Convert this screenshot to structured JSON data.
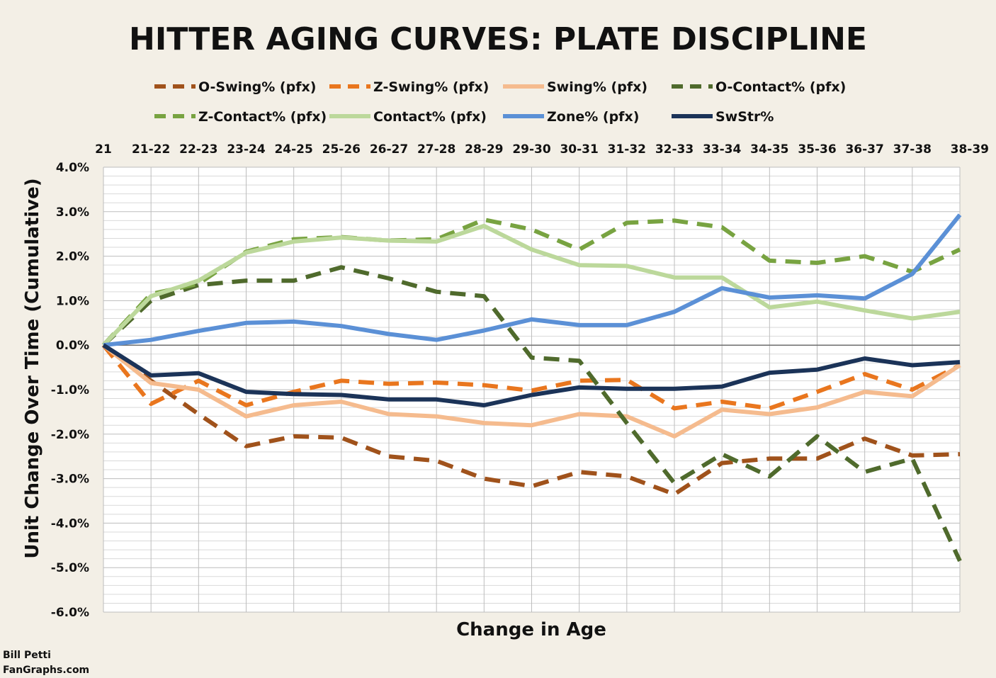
{
  "chart_data": {
    "type": "line",
    "title": "HITTER AGING CURVES: PLATE DISCIPLINE",
    "xlabel": "Change in Age",
    "ylabel": "Unit Change Over Time (Cumulative)",
    "categories": [
      "21",
      "21-22",
      "22-23",
      "23-24",
      "24-25",
      "25-26",
      "26-27",
      "27-28",
      "28-29",
      "29-30",
      "30-31",
      "31-32",
      "32-33",
      "33-34",
      "34-35",
      "35-36",
      "36-37",
      "37-38",
      "38-39"
    ],
    "ylim": [
      -6.0,
      4.0
    ],
    "yticks": [
      4.0,
      3.0,
      2.0,
      1.0,
      0.0,
      -1.0,
      -2.0,
      -3.0,
      -4.0,
      -5.0,
      -6.0
    ],
    "ytick_labels": [
      "4.0%",
      "3.0%",
      "2.0%",
      "1.0%",
      "0.0%",
      "-1.0%",
      "-2.0%",
      "-3.0%",
      "-4.0%",
      "-5.0%",
      "-6.0%"
    ],
    "y_unit": "%",
    "x_tick_position": "top",
    "grid": true,
    "legend_position": "top",
    "series": [
      {
        "name": "O-Swing% (pfx)",
        "color": "#a0521b",
        "dash": "dashed",
        "values": [
          0.0,
          -0.8,
          -1.55,
          -2.27,
          -2.05,
          -2.08,
          -2.5,
          -2.6,
          -3.0,
          -3.17,
          -2.85,
          -2.95,
          -3.35,
          -2.65,
          -2.55,
          -2.55,
          -2.1,
          -2.48,
          -2.45
        ]
      },
      {
        "name": "Z-Swing% (pfx)",
        "color": "#e9761e",
        "dash": "dashed",
        "values": [
          0.0,
          -1.32,
          -0.8,
          -1.35,
          -1.05,
          -0.8,
          -0.87,
          -0.84,
          -0.9,
          -1.02,
          -0.8,
          -0.78,
          -1.42,
          -1.27,
          -1.42,
          -1.05,
          -0.65,
          -1.0,
          -0.45
        ]
      },
      {
        "name": "Swing% (pfx)",
        "color": "#f5bb8e",
        "dash": "solid",
        "values": [
          0.0,
          -0.85,
          -1.0,
          -1.6,
          -1.35,
          -1.27,
          -1.55,
          -1.6,
          -1.75,
          -1.8,
          -1.55,
          -1.6,
          -2.05,
          -1.45,
          -1.55,
          -1.4,
          -1.05,
          -1.15,
          -0.45
        ]
      },
      {
        "name": "O-Contact% (pfx)",
        "color": "#4f6a2c",
        "dash": "dashed",
        "values": [
          0.0,
          1.0,
          1.35,
          1.45,
          1.45,
          1.75,
          1.5,
          1.2,
          1.1,
          -0.28,
          -0.35,
          -1.75,
          -3.1,
          -2.45,
          -2.95,
          -2.05,
          -2.85,
          -2.55,
          -4.85
        ]
      },
      {
        "name": "Z-Contact% (pfx)",
        "color": "#78a341",
        "dash": "dashed",
        "values": [
          0.0,
          1.15,
          1.38,
          2.1,
          2.38,
          2.43,
          2.35,
          2.38,
          2.82,
          2.6,
          2.15,
          2.75,
          2.8,
          2.65,
          1.9,
          1.85,
          2.0,
          1.65,
          2.15
        ]
      },
      {
        "name": "Contact% (pfx)",
        "color": "#bcd89b",
        "dash": "solid",
        "values": [
          0.0,
          1.1,
          1.45,
          2.08,
          2.33,
          2.42,
          2.35,
          2.33,
          2.68,
          2.15,
          1.8,
          1.78,
          1.52,
          1.52,
          0.85,
          0.98,
          0.78,
          0.6,
          0.75
        ]
      },
      {
        "name": "Zone% (pfx)",
        "color": "#5b90d6",
        "dash": "solid",
        "values": [
          0.0,
          0.12,
          0.32,
          0.5,
          0.53,
          0.43,
          0.25,
          0.12,
          0.33,
          0.58,
          0.45,
          0.45,
          0.75,
          1.28,
          1.07,
          1.12,
          1.05,
          1.6,
          2.93
        ]
      },
      {
        "name": "SwStr%",
        "color": "#1b3358",
        "dash": "solid",
        "values": [
          0.0,
          -0.68,
          -0.63,
          -1.05,
          -1.1,
          -1.12,
          -1.22,
          -1.22,
          -1.35,
          -1.12,
          -0.95,
          -0.98,
          -0.98,
          -0.93,
          -0.62,
          -0.55,
          -0.3,
          -0.45,
          -0.38
        ]
      }
    ]
  },
  "credit": {
    "line1": "Bill Petti",
    "line2": "FanGraphs.com"
  }
}
